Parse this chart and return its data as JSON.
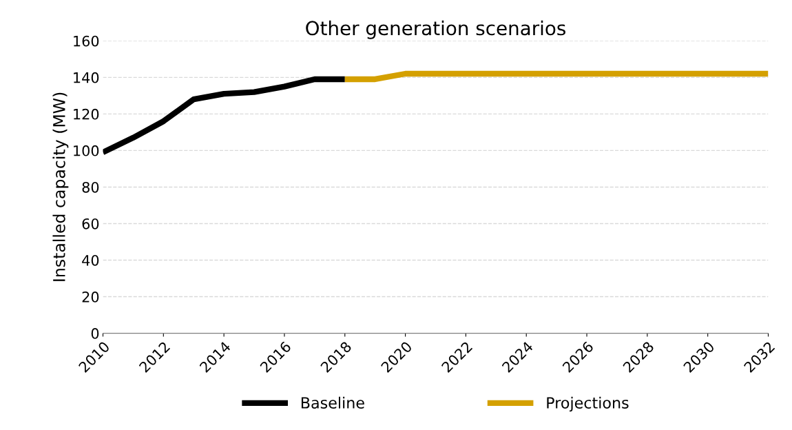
{
  "chart_data": {
    "type": "line",
    "title": "Other generation scenarios",
    "ylabel": "Installed capacity (MW)",
    "xlim": [
      2010,
      2032
    ],
    "xticks": [
      2010,
      2012,
      2014,
      2016,
      2018,
      2020,
      2022,
      2024,
      2026,
      2028,
      2030,
      2032
    ],
    "ylim": [
      0,
      160
    ],
    "yticks": [
      0,
      20,
      40,
      60,
      80,
      100,
      120,
      140,
      160
    ],
    "grid": "y",
    "legend": "bottom",
    "series": [
      {
        "name": "Baseline",
        "color": "#000000",
        "x": [
          2010,
          2011,
          2012,
          2013,
          2014,
          2015,
          2016,
          2017,
          2018
        ],
        "values": [
          99,
          107,
          116,
          128,
          131,
          132,
          135,
          139,
          139
        ]
      },
      {
        "name": "Projections",
        "color": "#d4a000",
        "x": [
          2018,
          2019,
          2020,
          2021,
          2022,
          2023,
          2024,
          2025,
          2026,
          2027,
          2028,
          2029,
          2030,
          2031,
          2032
        ],
        "values": [
          139,
          139,
          142,
          142,
          142,
          142,
          142,
          142,
          142,
          142,
          142,
          142,
          142,
          142,
          142
        ]
      }
    ]
  }
}
